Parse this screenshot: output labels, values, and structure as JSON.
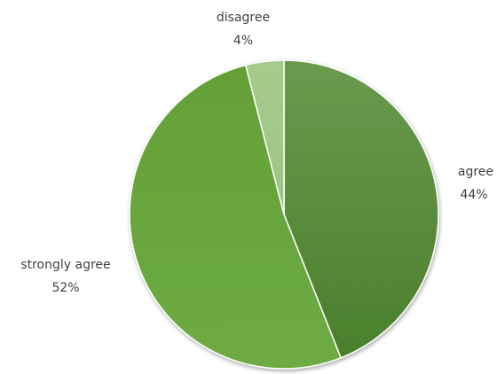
{
  "chart_data": {
    "type": "pie",
    "title": "",
    "start_angle_deg": 0,
    "direction": "clockwise",
    "slices": [
      {
        "label": "agree",
        "value": 44,
        "value_label": "44%",
        "color": "#4f8a32"
      },
      {
        "label": "strongly agree",
        "value": 52,
        "value_label": "52%",
        "color": "#68a33c"
      },
      {
        "label": "disagree",
        "value": 4,
        "value_label": "4%",
        "color": "#a3c98a"
      }
    ]
  }
}
